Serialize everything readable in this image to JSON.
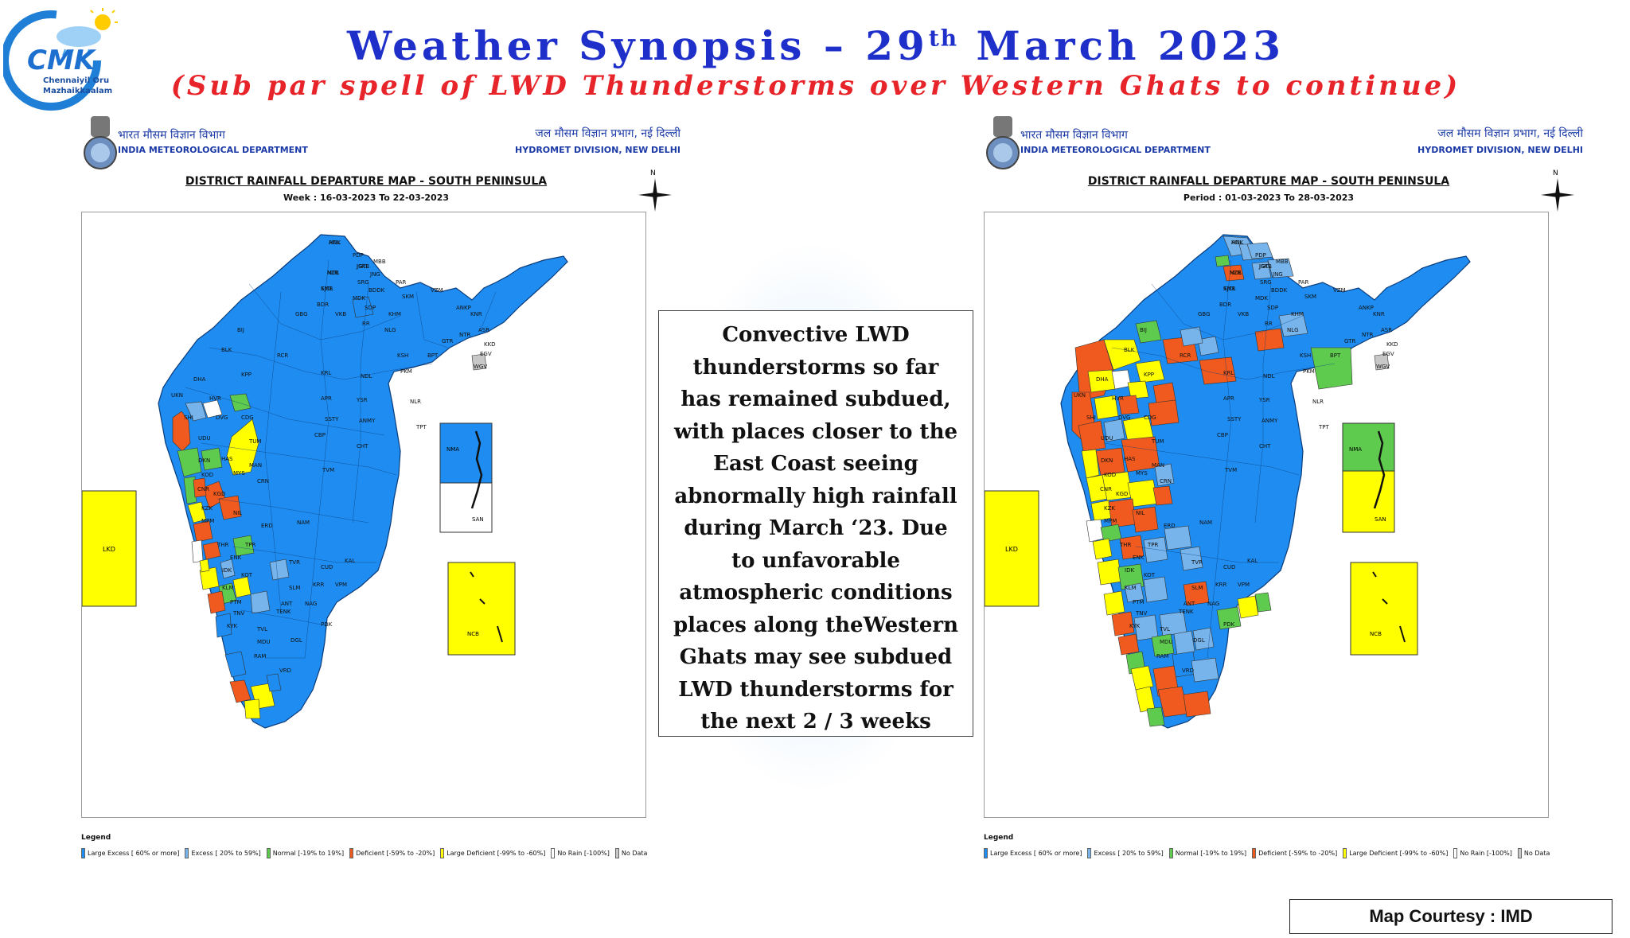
{
  "logo": {
    "name": "CMK",
    "line1": "Chennaiyil Oru",
    "line2": "Mazhaikkaalam"
  },
  "header": {
    "title_main": "Weather Synopsis – 29",
    "title_sup": "th",
    "title_end": " March 2023",
    "subtitle": "(Sub par spell of LWD Thunderstorms over Western Ghats to continue)"
  },
  "maps": [
    {
      "dept_hindi": "भारत मौसम विज्ञान विभाग",
      "dept_english": "INDIA METEOROLOGICAL DEPARTMENT",
      "division_hindi": "जल मौसम विज्ञान प्रभाग, नई दिल्ली",
      "division_english": "HYDROMET DIVISION, NEW DELHI",
      "title": "DISTRICT RAINFALL DEPARTURE MAP - SOUTH PENINSULA",
      "period": "Week : 16-03-2023 To 22-03-2023",
      "north_label": "N",
      "island_labels": {
        "lkd": "LKD",
        "nma": "NMA",
        "san": "SAN",
        "ncb": "NCB"
      },
      "island_colors": {
        "lkd": "#ffff00",
        "nma": "#1e8cf0",
        "san": "#ffffff",
        "ncb": "#ffff00"
      }
    },
    {
      "dept_hindi": "भारत मौसम विज्ञान विभाग",
      "dept_english": "INDIA METEOROLOGICAL DEPARTMENT",
      "division_hindi": "जल मौसम विज्ञान प्रभाग, नई दिल्ली",
      "division_english": "HYDROMET DIVISION, NEW DELHI",
      "title": "DISTRICT RAINFALL DEPARTURE MAP - SOUTH PENINSULA",
      "period": "Period : 01-03-2023 To 28-03-2023",
      "north_label": "N",
      "island_labels": {
        "lkd": "LKD",
        "nma": "NMA",
        "san": "SAN",
        "ncb": "NCB"
      },
      "island_colors": {
        "lkd": "#ffff00",
        "nma": "#5ecb4f",
        "san": "#ffff00",
        "ncb": "#ffff00"
      }
    }
  ],
  "legend": {
    "title": "Legend",
    "items": [
      {
        "label": "Large Excess [ 60% or more]",
        "color": "#1e8cf0"
      },
      {
        "label": "Excess [ 20% to 59%]",
        "color": "#78b4ec"
      },
      {
        "label": "Normal [-19% to 19%]",
        "color": "#5ecb4f"
      },
      {
        "label": "Deficient [-59% to -20%]",
        "color": "#f05a1e"
      },
      {
        "label": "Large Deficient [-99% to -60%]",
        "color": "#ffff00"
      },
      {
        "label": "No Rain [-100%]",
        "color": "#ffffff"
      },
      {
        "label": "No Data",
        "color": "#c8c8c8"
      }
    ]
  },
  "district_labels_week": [
    "ADL",
    "NZB",
    "KMR",
    "JGTL",
    "BDR",
    "MDK",
    "SDP",
    "GBG",
    "VKB",
    "RR",
    "NLG",
    "BIJ",
    "BLK",
    "RCR",
    "KRL",
    "NDL",
    "PKM",
    "KPP",
    "DHA",
    "UKN",
    "HVR",
    "APR",
    "YSR",
    "NLR",
    "SHI",
    "DVG",
    "CDG",
    "SSTY",
    "ANMY",
    "TPT",
    "UDU",
    "TUM",
    "CBP",
    "DKN",
    "HAS",
    "MAN",
    "CHT",
    "KOD",
    "MYS",
    "CRN",
    "TVM",
    "CNR",
    "KGD",
    "KZK",
    "MPM",
    "NIL",
    "ERD",
    "NAM",
    "TPR",
    "THR",
    "ENK",
    "IDK",
    "KOT",
    "KLM",
    "PTM",
    "TNV",
    "KYK",
    "TVL",
    "MDU",
    "RAM",
    "VRD",
    "DGL",
    "TENK",
    "ANT",
    "SLM",
    "KRR",
    "PDK",
    "NAG",
    "CUD",
    "VPM",
    "KAL",
    "TVR",
    "KNR",
    "ANKP",
    "ASR",
    "EGV",
    "WGV",
    "KKD",
    "NTR",
    "GTR",
    "BPT",
    "KSH",
    "SKM",
    "VZM",
    "PAR",
    "KHM",
    "BDDK",
    "SRG",
    "MBB",
    "JNG",
    "PDP",
    "HNK",
    "MUL",
    "SJCL",
    "JSKB"
  ],
  "middle_text": "Convective LWD thunderstorms so far has remained subdued, with places closer to the East Coast seeing abnormally high rainfall during March ‘23. Due to unfavorable atmospheric conditions places along theWestern Ghats may see subdued LWD thunderstorms for the next 2 / 3 weeks",
  "middle_lines": [
    "Convective LWD",
    "thunderstorms so far",
    "has remained subdued,",
    "with places closer to the",
    "East Coast seeing",
    "abnormally high rainfall",
    "during March ‘23. Due",
    "to unfavorable",
    "atmospheric conditions",
    "places along theWestern",
    "Ghats may see subdued",
    "LWD thunderstorms for",
    "the next 2 / 3 weeks"
  ],
  "courtesy": "Map Courtesy : IMD"
}
